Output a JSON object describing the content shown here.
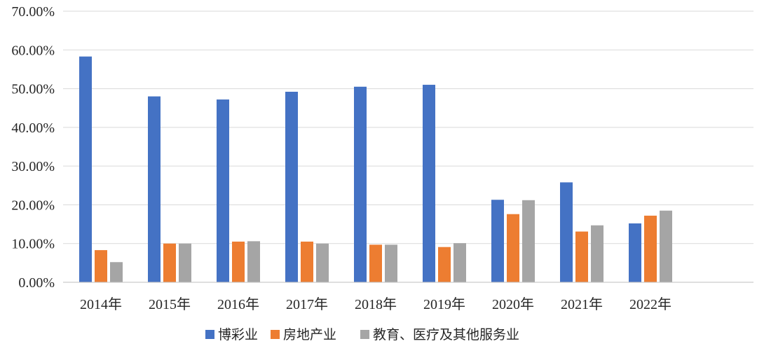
{
  "chart_data": {
    "type": "bar",
    "title": "",
    "xlabel": "",
    "ylabel": "",
    "ylim": [
      0,
      70
    ],
    "y_tick_labels": [
      "0.00%",
      "10.00%",
      "20.00%",
      "30.00%",
      "40.00%",
      "50.00%",
      "60.00%",
      "70.00%"
    ],
    "categories": [
      "2014年",
      "2015年",
      "2016年",
      "2017年",
      "2018年",
      "2019年",
      "2020年",
      "2021年",
      "2022年"
    ],
    "series": [
      {
        "name": "博彩业",
        "color": "#4472C4",
        "values": [
          58.3,
          48.0,
          47.2,
          49.2,
          50.5,
          51.0,
          21.3,
          25.8,
          15.2
        ]
      },
      {
        "name": "房地产业",
        "color": "#ED7D31",
        "values": [
          8.3,
          10.0,
          10.5,
          10.5,
          9.7,
          9.1,
          17.6,
          13.1,
          17.2
        ]
      },
      {
        "name": "教育、医疗及其他服务业",
        "color": "#A5A5A5",
        "values": [
          5.2,
          10.0,
          10.6,
          10.0,
          9.7,
          10.1,
          21.2,
          14.7,
          18.5
        ]
      }
    ],
    "grid": true,
    "legend_position": "bottom"
  }
}
